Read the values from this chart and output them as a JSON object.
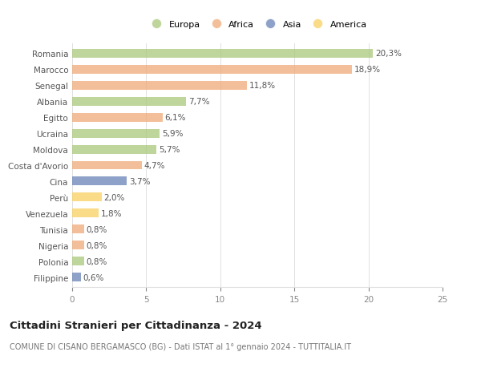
{
  "countries": [
    "Romania",
    "Marocco",
    "Senegal",
    "Albania",
    "Egitto",
    "Ucraina",
    "Moldova",
    "Costa d'Avorio",
    "Cina",
    "Perù",
    "Venezuela",
    "Tunisia",
    "Nigeria",
    "Polonia",
    "Filippine"
  ],
  "values": [
    20.3,
    18.9,
    11.8,
    7.7,
    6.1,
    5.9,
    5.7,
    4.7,
    3.7,
    2.0,
    1.8,
    0.8,
    0.8,
    0.8,
    0.6
  ],
  "labels": [
    "20,3%",
    "18,9%",
    "11,8%",
    "7,7%",
    "6,1%",
    "5,9%",
    "5,7%",
    "4,7%",
    "3,7%",
    "2,0%",
    "1,8%",
    "0,8%",
    "0,8%",
    "0,8%",
    "0,6%"
  ],
  "continents": [
    "Europa",
    "Africa",
    "Africa",
    "Europa",
    "Africa",
    "Europa",
    "Europa",
    "Africa",
    "Asia",
    "America",
    "America",
    "Africa",
    "Africa",
    "Europa",
    "Asia"
  ],
  "colors": {
    "Europa": "#a8c87a",
    "Africa": "#f0aa78",
    "Asia": "#6882b8",
    "America": "#f8d060"
  },
  "bar_alpha": 0.75,
  "title": "Cittadini Stranieri per Cittadinanza - 2024",
  "subtitle": "COMUNE DI CISANO BERGAMASCO (BG) - Dati ISTAT al 1° gennaio 2024 - TUTTITALIA.IT",
  "xlim": [
    0,
    25
  ],
  "xticks": [
    0,
    5,
    10,
    15,
    20,
    25
  ],
  "background_color": "#ffffff",
  "grid_color": "#e0e0e0",
  "bar_height": 0.55,
  "label_fontsize": 7.5,
  "tick_fontsize": 7.5,
  "title_fontsize": 9.5,
  "subtitle_fontsize": 7.0,
  "legend_order": [
    "Europa",
    "Africa",
    "Asia",
    "America"
  ]
}
